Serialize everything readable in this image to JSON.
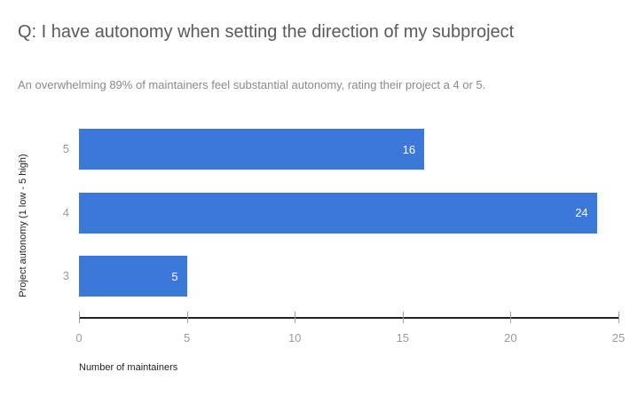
{
  "header": {
    "title": "Q: I have autonomy when setting the direction of my subproject",
    "subtitle": "An overwhelming 89% of maintainers feel substantial autonomy, rating their project a 4 or 5."
  },
  "colors": {
    "bar": "#3c78d8",
    "value_label": "#ffffff",
    "axis_line": "#212121",
    "tick_mark": "#9e9e9e",
    "tick_label": "#9b9b9b",
    "title": "#5a5a5a",
    "subtitle": "#8a8a8a",
    "axis_title": "#1f1f1f"
  },
  "chart_data": {
    "type": "bar",
    "orientation": "horizontal",
    "title": "Q: I have autonomy when setting the direction of my subproject",
    "subtitle": "An overwhelming 89% of maintainers feel substantial autonomy, rating their project a 4 or 5.",
    "categories": [
      "5",
      "4",
      "3"
    ],
    "values": [
      16,
      24,
      5
    ],
    "xlabel": "Number of maintainers",
    "ylabel": "Project autonomy (1 low - 5 high)",
    "xlim": [
      0,
      25
    ],
    "xticks": [
      0,
      5,
      10,
      15,
      20,
      25
    ],
    "grid": false,
    "legend": false,
    "value_labels_position": "inside-end"
  }
}
